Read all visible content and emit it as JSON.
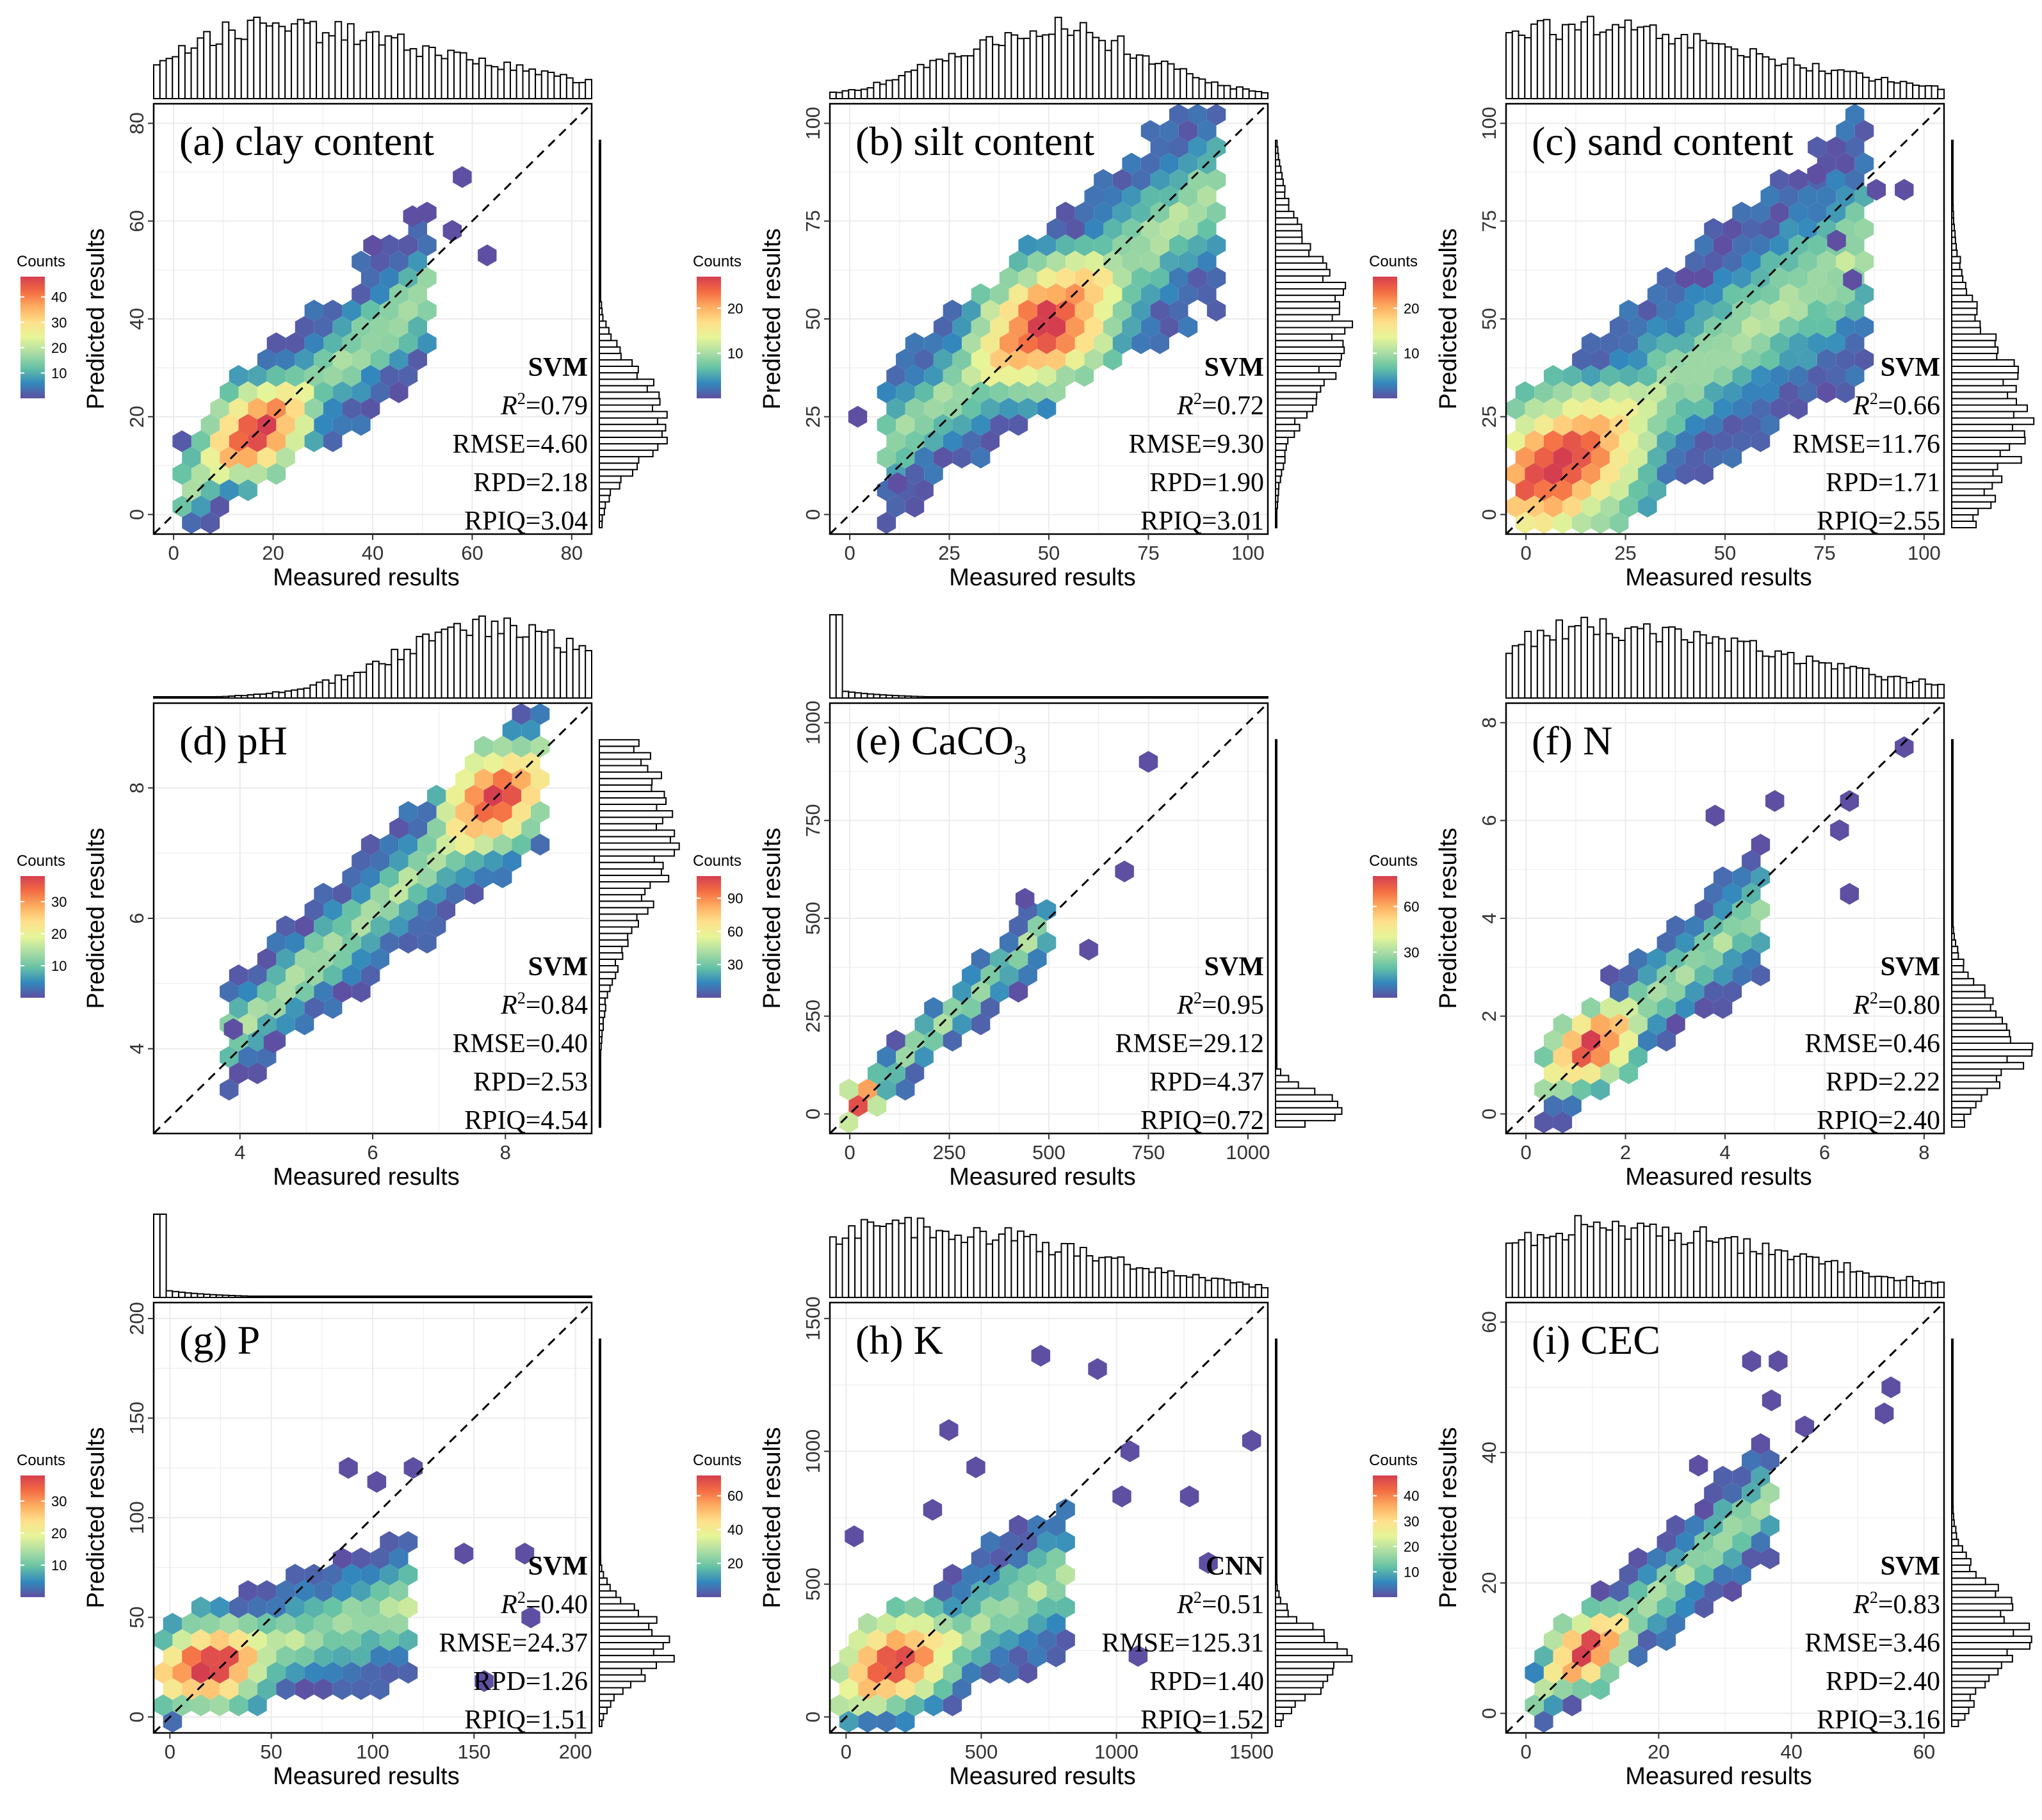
{
  "figure": {
    "xlabel": "Measured results",
    "ylabel": "Predicted results",
    "counts_label": "Counts",
    "colors": {
      "plot_bg": "#ffffff",
      "grid": "#ebebeb",
      "frame": "#000000",
      "diagonal": "#000000",
      "hist_fill": "#ffffff",
      "hist_stroke": "#000000",
      "scale": [
        "#5e4fa2",
        "#3288bd",
        "#66c2a5",
        "#abdda4",
        "#e6f598",
        "#fee08b",
        "#fdae61",
        "#f46d43",
        "#d53e4f"
      ]
    }
  },
  "chart_data": [
    {
      "type": "scatter",
      "subtype": "hexbin",
      "id": "a",
      "title_prefix": "(a) clay content",
      "title_sub": "",
      "xlim": [
        -4,
        84
      ],
      "ylim": [
        -4,
        84
      ],
      "xticks": [
        0,
        20,
        40,
        60,
        80
      ],
      "yticks": [
        0,
        20,
        40,
        60,
        80
      ],
      "model": "SVM",
      "r2": "0.79",
      "rmse": "4.60",
      "rpd": "2.18",
      "rpiq": "3.04",
      "legend_ticks": [
        10,
        20,
        30,
        40
      ],
      "legend_max": 48,
      "pred_line": {
        "slope": 0.82,
        "intercept": 3.5
      },
      "core_x": [
        5,
        48
      ],
      "noise": 6,
      "hot_center": [
        17,
        17
      ],
      "outliers": [
        [
          58,
          69
        ],
        [
          63,
          53
        ],
        [
          48,
          61
        ],
        [
          56,
          58
        ],
        [
          40,
          55
        ]
      ],
      "x_hist_peak": 18,
      "x_hist_skew": 1,
      "y_hist_peak": 20,
      "y_hist_spread": 9
    },
    {
      "type": "scatter",
      "subtype": "hexbin",
      "id": "b",
      "title_prefix": "(b) silt content",
      "title_sub": "",
      "xlim": [
        -5,
        105
      ],
      "ylim": [
        -5,
        105
      ],
      "xticks": [
        0,
        25,
        50,
        75,
        100
      ],
      "yticks": [
        0,
        25,
        50,
        75,
        100
      ],
      "model": "SVM",
      "r2": "0.72",
      "rmse": "9.30",
      "rpd": "1.90",
      "rpiq": "3.01",
      "legend_ticks": [
        10,
        20
      ],
      "legend_max": 27,
      "pred_line": {
        "slope": 0.78,
        "intercept": 11
      },
      "core_x": [
        15,
        88
      ],
      "noise": 10,
      "hot_center": [
        50,
        48
      ],
      "outliers": [
        [
          2,
          25
        ],
        [
          12,
          8
        ]
      ],
      "x_hist_peak": 50,
      "x_hist_skew": 0,
      "y_hist_peak": 50,
      "y_hist_spread": 18
    },
    {
      "type": "scatter",
      "subtype": "hexbin",
      "id": "c",
      "title_prefix": "(c) sand content",
      "title_sub": "",
      "xlim": [
        -5,
        105
      ],
      "ylim": [
        -5,
        105
      ],
      "xticks": [
        0,
        25,
        50,
        75,
        100
      ],
      "yticks": [
        0,
        25,
        50,
        75,
        100
      ],
      "model": "SVM",
      "r2": "0.66",
      "rmse": "11.76",
      "rpd": "1.71",
      "rpiq": "2.55",
      "legend_ticks": [
        10,
        20
      ],
      "legend_max": 27,
      "pred_line": {
        "slope": 0.72,
        "intercept": 7
      },
      "core_x": [
        2,
        78
      ],
      "noise": 12,
      "hot_center": [
        8,
        12
      ],
      "outliers": [
        [
          73,
          87
        ],
        [
          95,
          83
        ],
        [
          88,
          83
        ],
        [
          78,
          70
        ],
        [
          82,
          60
        ]
      ],
      "x_hist_peak": 10,
      "x_hist_skew": 1,
      "y_hist_peak": 25,
      "y_hist_spread": 20
    },
    {
      "type": "scatter",
      "subtype": "hexbin",
      "id": "d",
      "title_prefix": "(d) pH",
      "title_sub": "",
      "xlim": [
        2.7,
        9.3
      ],
      "ylim": [
        2.7,
        9.3
      ],
      "xticks": [
        4,
        6,
        8
      ],
      "yticks": [
        4,
        6,
        8
      ],
      "model": "SVM",
      "r2": "0.84",
      "rmse": "0.40",
      "rpd": "2.53",
      "rpiq": "4.54",
      "legend_ticks": [
        10,
        20,
        30
      ],
      "legend_max": 38,
      "pred_line": {
        "slope": 0.88,
        "intercept": 0.8
      },
      "core_x": [
        4,
        8.3
      ],
      "noise": 0.45,
      "hot_center": [
        7.8,
        7.9
      ],
      "outliers": [
        [
          4.5,
          4.1
        ],
        [
          3.9,
          4.3
        ]
      ],
      "x_hist_peak": 7.8,
      "x_hist_skew": -1,
      "y_hist_peak": 7.5,
      "y_hist_spread": 1.3
    },
    {
      "type": "scatter",
      "subtype": "hexbin",
      "id": "e",
      "title_prefix": "(e) CaCO",
      "title_sub": "3",
      "xlim": [
        -50,
        1050
      ],
      "ylim": [
        -50,
        1050
      ],
      "xticks": [
        0,
        250,
        500,
        750,
        1000
      ],
      "yticks": [
        0,
        250,
        500,
        750,
        1000
      ],
      "model": "SVM",
      "r2": "0.95",
      "rmse": "29.12",
      "rpd": "4.37",
      "rpiq": "0.72",
      "legend_ticks": [
        30,
        60,
        90
      ],
      "legend_max": 110,
      "pred_line": {
        "slope": 0.93,
        "intercept": 15
      },
      "core_x": [
        10,
        480
      ],
      "noise": 35,
      "hot_center": [
        20,
        30
      ],
      "outliers": [
        [
          750,
          900
        ],
        [
          690,
          620
        ],
        [
          440,
          550
        ],
        [
          600,
          420
        ]
      ],
      "x_hist_peak": 5,
      "x_hist_skew": 3,
      "y_hist_peak": 5,
      "y_hist_spread": 40
    },
    {
      "type": "scatter",
      "subtype": "hexbin",
      "id": "f",
      "title_prefix": "(f) N",
      "title_sub": "",
      "xlim": [
        -0.4,
        8.4
      ],
      "ylim": [
        -0.4,
        8.4
      ],
      "xticks": [
        0,
        2,
        4,
        6,
        8
      ],
      "yticks": [
        0,
        2,
        4,
        6,
        8
      ],
      "model": "SVM",
      "r2": "0.80",
      "rmse": "0.46",
      "rpd": "2.22",
      "rpiq": "2.40",
      "legend_ticks": [
        30,
        60
      ],
      "legend_max": 80,
      "pred_line": {
        "slope": 0.82,
        "intercept": 0.3
      },
      "core_x": [
        0.6,
        4.5
      ],
      "noise": 0.5,
      "hot_center": [
        1.3,
        1.4
      ],
      "outliers": [
        [
          7.6,
          7.5
        ],
        [
          6.5,
          6.4
        ],
        [
          6.3,
          5.8
        ],
        [
          5.0,
          6.4
        ],
        [
          6.5,
          4.5
        ],
        [
          3.8,
          6.1
        ]
      ],
      "x_hist_peak": 1.3,
      "x_hist_skew": 1,
      "y_hist_peak": 1.4,
      "y_hist_spread": 0.9
    },
    {
      "type": "scatter",
      "subtype": "hexbin",
      "id": "g",
      "title_prefix": "(g) P",
      "title_sub": "",
      "xlim": [
        -8,
        208
      ],
      "ylim": [
        -8,
        208
      ],
      "xticks": [
        0,
        50,
        100,
        150,
        200
      ],
      "yticks": [
        0,
        50,
        100,
        150,
        200
      ],
      "model": "SVM",
      "r2": "0.40",
      "rmse": "24.37",
      "rpd": "1.26",
      "rpiq": "1.51",
      "legend_ticks": [
        10,
        20,
        30
      ],
      "legend_max": 38,
      "pred_line": {
        "slope": 0.28,
        "intercept": 22
      },
      "core_x": [
        5,
        110
      ],
      "noise": 14,
      "hot_center": [
        20,
        25
      ],
      "outliers": [
        [
          88,
          125
        ],
        [
          102,
          118
        ],
        [
          120,
          125
        ],
        [
          145,
          82
        ],
        [
          175,
          82
        ],
        [
          178,
          50
        ],
        [
          155,
          18
        ]
      ],
      "x_hist_peak": 0,
      "x_hist_skew": 3,
      "y_hist_peak": 35,
      "y_hist_spread": 16
    },
    {
      "type": "scatter",
      "subtype": "hexbin",
      "id": "h",
      "title_prefix": "(h) K",
      "title_sub": "",
      "xlim": [
        -60,
        1560
      ],
      "ylim": [
        -60,
        1560
      ],
      "xticks": [
        0,
        500,
        1000,
        1500
      ],
      "yticks": [
        0,
        500,
        1000,
        1500
      ],
      "model": "CNN",
      "r2": "0.51",
      "rmse": "125.31",
      "rpd": "1.40",
      "rpiq": "1.52",
      "legend_ticks": [
        20,
        40,
        60
      ],
      "legend_max": 72,
      "pred_line": {
        "slope": 0.55,
        "intercept": 80
      },
      "core_x": [
        30,
        780
      ],
      "noise": 110,
      "hot_center": [
        170,
        230
      ],
      "outliers": [
        [
          720,
          1360
        ],
        [
          930,
          1310
        ],
        [
          380,
          1080
        ],
        [
          1500,
          1040
        ],
        [
          1050,
          1000
        ],
        [
          480,
          940
        ],
        [
          1270,
          830
        ],
        [
          1020,
          830
        ],
        [
          320,
          780
        ],
        [
          1340,
          580
        ],
        [
          1080,
          230
        ],
        [
          30,
          680
        ]
      ],
      "x_hist_peak": 180,
      "x_hist_skew": 1,
      "y_hist_peak": 200,
      "y_hist_spread": 110
    },
    {
      "type": "scatter",
      "subtype": "hexbin",
      "id": "i",
      "title_prefix": "(i) CEC",
      "title_sub": "",
      "xlim": [
        -3,
        63
      ],
      "ylim": [
        -3,
        63
      ],
      "xticks": [
        0,
        20,
        40,
        60
      ],
      "yticks": [
        0,
        20,
        40,
        60
      ],
      "model": "SVM",
      "r2": "0.83",
      "rmse": "3.46",
      "rpd": "2.40",
      "rpiq": "3.16",
      "legend_ticks": [
        10,
        20,
        30,
        40
      ],
      "legend_max": 48,
      "pred_line": {
        "slope": 0.85,
        "intercept": 1.5
      },
      "core_x": [
        2,
        36
      ],
      "noise": 3.5,
      "hot_center": [
        9,
        10
      ],
      "outliers": [
        [
          34,
          54
        ],
        [
          38,
          54
        ],
        [
          37,
          48
        ],
        [
          55,
          50
        ],
        [
          54,
          46
        ],
        [
          42,
          44
        ],
        [
          26,
          38
        ]
      ],
      "x_hist_peak": 10,
      "x_hist_skew": 1,
      "y_hist_peak": 12,
      "y_hist_spread": 7
    }
  ]
}
